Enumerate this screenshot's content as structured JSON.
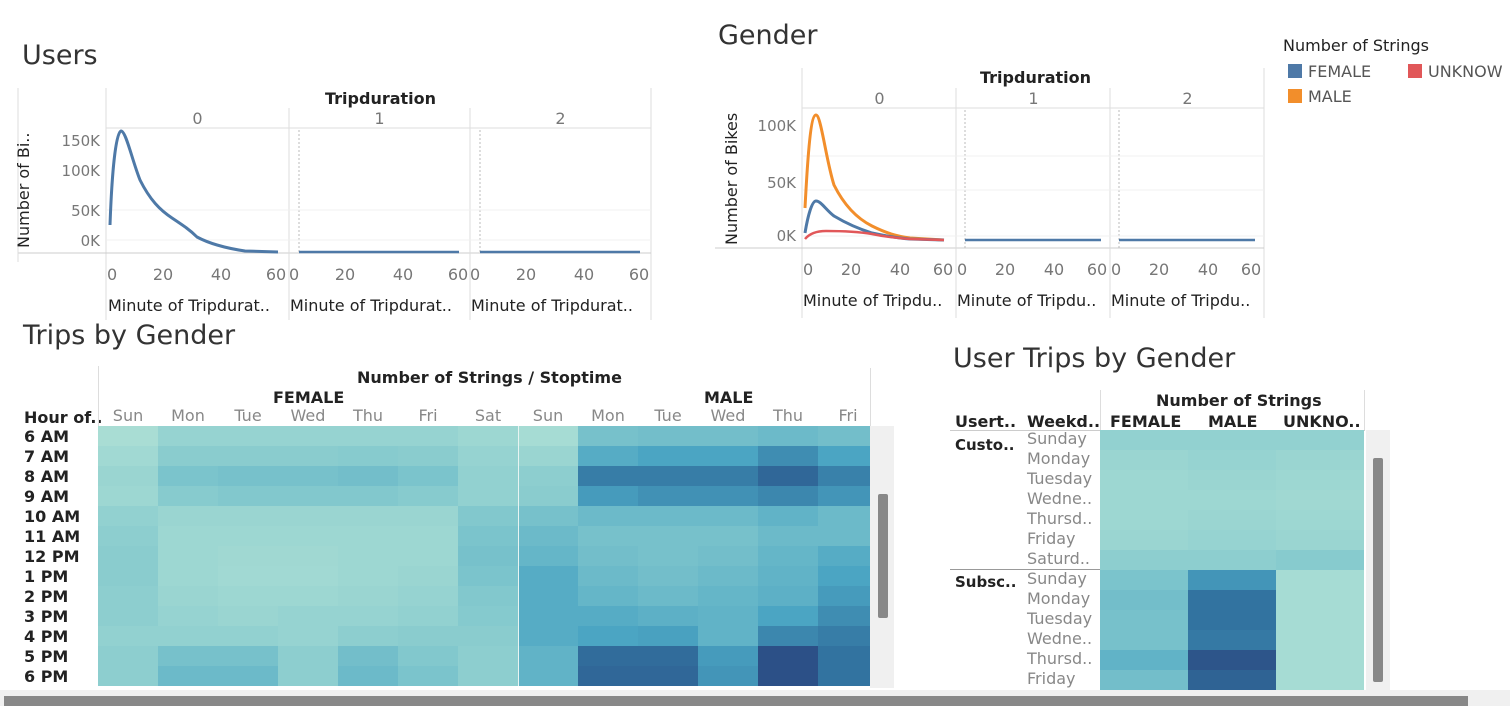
{
  "colors": {
    "female": "#4e79a7",
    "male": "#f28e2b",
    "unknown": "#e15759"
  },
  "users": {
    "title": "Users",
    "header": "Tripduration",
    "panels": [
      "0",
      "1",
      "2"
    ],
    "ylabel": "Number of Bi..",
    "xlabel": "Minute of Tripdurat..",
    "yticks": [
      "150K",
      "100K",
      "50K",
      "0K"
    ],
    "xticks": [
      "0",
      "20",
      "40",
      "60"
    ]
  },
  "gender": {
    "title": "Gender",
    "header": "Tripduration",
    "panels": [
      "0",
      "1",
      "2"
    ],
    "ylabel": "Number of Bikes",
    "xlabel": "Minute of Tripdu..",
    "yticks": [
      "100K",
      "50K",
      "0K"
    ],
    "xticks": [
      "0",
      "20",
      "40",
      "60"
    ]
  },
  "legend": {
    "title": "Number of Strings",
    "items": [
      {
        "label": "FEMALE",
        "color": "#4e79a7"
      },
      {
        "label": "MALE",
        "color": "#f28e2b"
      },
      {
        "label": "UNKNOW",
        "color": "#e15759"
      }
    ]
  },
  "trips_by_gender": {
    "title": "Trips by Gender",
    "header": "Number of Strings  /  Stoptime",
    "row_header": "Hour of..",
    "groups": [
      "FEMALE",
      "MALE"
    ],
    "female_days": [
      "Sun",
      "Mon",
      "Tue",
      "Wed",
      "Thu",
      "Fri",
      "Sat"
    ],
    "male_days": [
      "Sun",
      "Mon",
      "Tue",
      "Wed",
      "Thu",
      "Fri"
    ],
    "hours": [
      "6 AM",
      "7 AM",
      "8 AM",
      "9 AM",
      "10 AM",
      "11 AM",
      "12 PM",
      "1 PM",
      "2 PM",
      "3 PM",
      "4 PM",
      "5 PM",
      "6 PM"
    ],
    "cells": [
      [
        0.1,
        0.22,
        0.22,
        0.22,
        0.22,
        0.22,
        0.18,
        0.12,
        0.4,
        0.42,
        0.42,
        0.45,
        0.42
      ],
      [
        0.15,
        0.3,
        0.3,
        0.3,
        0.32,
        0.3,
        0.22,
        0.2,
        0.55,
        0.6,
        0.6,
        0.72,
        0.6
      ],
      [
        0.2,
        0.38,
        0.4,
        0.4,
        0.42,
        0.38,
        0.25,
        0.28,
        0.8,
        0.8,
        0.8,
        0.9,
        0.78
      ],
      [
        0.18,
        0.32,
        0.35,
        0.35,
        0.35,
        0.32,
        0.25,
        0.3,
        0.65,
        0.7,
        0.7,
        0.75,
        0.68
      ],
      [
        0.25,
        0.2,
        0.2,
        0.2,
        0.2,
        0.2,
        0.35,
        0.4,
        0.45,
        0.45,
        0.45,
        0.5,
        0.45
      ],
      [
        0.28,
        0.18,
        0.18,
        0.18,
        0.18,
        0.18,
        0.38,
        0.45,
        0.4,
        0.4,
        0.4,
        0.45,
        0.45
      ],
      [
        0.3,
        0.18,
        0.16,
        0.16,
        0.18,
        0.18,
        0.4,
        0.48,
        0.42,
        0.4,
        0.42,
        0.48,
        0.55
      ],
      [
        0.3,
        0.18,
        0.15,
        0.15,
        0.18,
        0.2,
        0.38,
        0.55,
        0.45,
        0.42,
        0.45,
        0.5,
        0.6
      ],
      [
        0.28,
        0.2,
        0.18,
        0.18,
        0.2,
        0.22,
        0.35,
        0.55,
        0.48,
        0.45,
        0.48,
        0.52,
        0.65
      ],
      [
        0.28,
        0.22,
        0.2,
        0.22,
        0.22,
        0.25,
        0.33,
        0.55,
        0.55,
        0.52,
        0.5,
        0.6,
        0.72
      ],
      [
        0.25,
        0.25,
        0.25,
        0.22,
        0.28,
        0.3,
        0.3,
        0.55,
        0.6,
        0.62,
        0.5,
        0.75,
        0.8
      ],
      [
        0.28,
        0.4,
        0.4,
        0.28,
        0.42,
        0.35,
        0.28,
        0.5,
        0.88,
        0.88,
        0.65,
        1.0,
        0.85
      ],
      [
        0.28,
        0.45,
        0.45,
        0.28,
        0.45,
        0.38,
        0.28,
        0.5,
        0.9,
        0.9,
        0.68,
        1.0,
        0.85
      ]
    ]
  },
  "user_trips": {
    "title": "User Trips by Gender",
    "header": "Number of Strings",
    "col_headers": [
      "Usert..",
      "Weekd..",
      "FEMALE",
      "MALE",
      "UNKNO.."
    ],
    "user_types": [
      "Custo..",
      "Subsc.."
    ],
    "customer_days": [
      "Sunday",
      "Monday",
      "Tuesday",
      "Wedne..",
      "Thursd..",
      "Friday",
      "Saturd.."
    ],
    "subscriber_days": [
      "Sunday",
      "Monday",
      "Tuesday",
      "Wedne..",
      "Thursd..",
      "Friday"
    ],
    "customer_cells": [
      [
        0.25,
        0.25,
        0.25
      ],
      [
        0.2,
        0.22,
        0.2
      ],
      [
        0.18,
        0.2,
        0.18
      ],
      [
        0.18,
        0.18,
        0.16
      ],
      [
        0.18,
        0.2,
        0.18
      ],
      [
        0.2,
        0.22,
        0.2
      ],
      [
        0.28,
        0.28,
        0.32
      ]
    ],
    "subscriber_cells": [
      [
        0.38,
        0.68,
        0.12
      ],
      [
        0.42,
        0.85,
        0.12
      ],
      [
        0.4,
        0.85,
        0.12
      ],
      [
        0.4,
        0.82,
        0.12
      ],
      [
        0.5,
        0.98,
        0.12
      ],
      [
        0.42,
        0.92,
        0.12
      ]
    ]
  }
}
